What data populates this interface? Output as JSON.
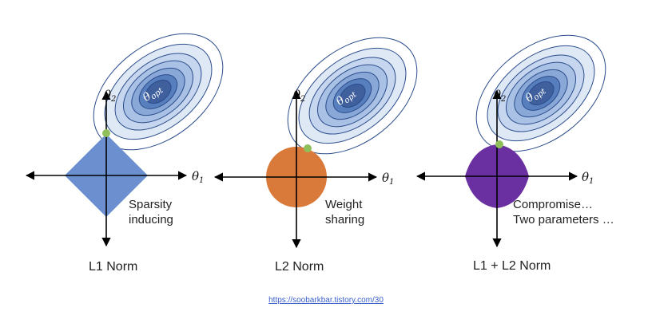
{
  "panels": [
    {
      "id": "l1",
      "caption": "L1 Norm",
      "note_lines": [
        "Sparsity",
        "inducing"
      ],
      "shape": "diamond",
      "shape_color": "#6b8fcf",
      "axis_x": "θ",
      "axis_x_sub": "1",
      "axis_y": "θ",
      "axis_y_sub": "2",
      "optimum": "θ",
      "optimum_sub": "opt"
    },
    {
      "id": "l2",
      "caption": "L2 Norm",
      "note_lines": [
        "Weight",
        "sharing"
      ],
      "shape": "circle",
      "shape_color": "#d97a3a",
      "axis_x": "θ",
      "axis_x_sub": "1",
      "axis_y": "θ",
      "axis_y_sub": "2",
      "optimum": "θ",
      "optimum_sub": "opt"
    },
    {
      "id": "elastic",
      "caption": "L1 + L2 Norm",
      "note_lines": [
        "Compromise…",
        "Two parameters …"
      ],
      "shape": "rounded-diamond",
      "shape_color": "#6a2fa0",
      "axis_x": "θ",
      "axis_x_sub": "1",
      "axis_y": "θ",
      "axis_y_sub": "2",
      "optimum": "θ",
      "optimum_sub": "opt"
    }
  ],
  "colors": {
    "contour_fills": [
      "#ffffff",
      "#dfe8f5",
      "#c5d6ee",
      "#a9c1e4",
      "#89a8d7",
      "#587fbd",
      "#3f5f9d"
    ],
    "contour_stroke": "#2b4c8c",
    "touch_point": "#8fbf5a"
  },
  "footer_link": "https://soobarkbar.tistory.com/30"
}
